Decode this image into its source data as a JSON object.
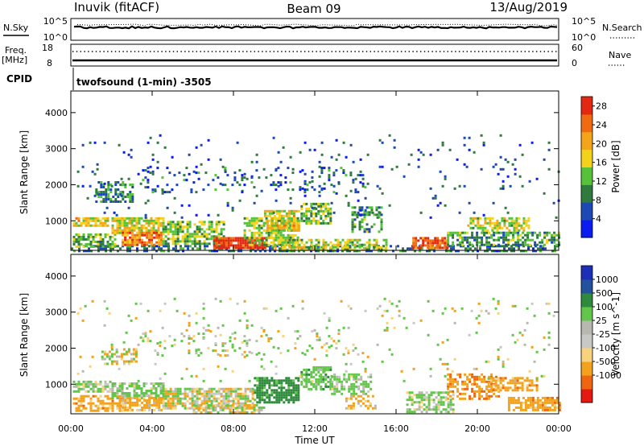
{
  "header": {
    "station": "Inuvik (fitACF)",
    "beam": "Beam 09",
    "date": "13/Aug/2019"
  },
  "mini_panels": {
    "nsky_label": "N.Sky",
    "nsky_ticks": [
      "10^5",
      "10^0"
    ],
    "nsearch_label": "N.Search",
    "nsearch_ticks": [
      "10^5",
      "10^0"
    ],
    "freq_label": "Freq.",
    "freq_unit": "[MHz]",
    "freq_ticks": [
      "18",
      "8"
    ],
    "nave_label": "Nave",
    "nave_ticks": [
      "60",
      "0"
    ],
    "cpid_label": "CPID",
    "cpid_value": "twofsound (1-min) -3505"
  },
  "colors": {
    "power_scale": [
      "#0b1cf0",
      "#1e48b4",
      "#2f7a3c",
      "#56c23a",
      "#f2d21a",
      "#f2a41b",
      "#ef6a10",
      "#e32812"
    ],
    "velocity_scale": [
      "#e41a10",
      "#ef6510",
      "#f2a21c",
      "#f8d27c",
      "#c8c8c4",
      "#b8b8b0",
      "#62c64a",
      "#2f8a3c",
      "#23519e",
      "#1c2fb6"
    ]
  },
  "chart_data": [
    {
      "type": "heatmap",
      "name": "power",
      "x_ticks": [
        "00:00",
        "04:00",
        "08:00",
        "12:00",
        "16:00",
        "20:00",
        "00:00"
      ],
      "xlim_hours": [
        0,
        24
      ],
      "ylabel": "Slant Range [km]",
      "ylim": [
        180,
        4600
      ],
      "y_ticks": [
        1000,
        2000,
        3000,
        4000
      ],
      "colorbar": {
        "label": "Power [dB]",
        "ticks": [
          "4",
          "8",
          "12",
          "16",
          "20",
          "24",
          "28"
        ],
        "range": [
          0,
          30
        ]
      },
      "regions": [
        {
          "x": [
            0.0,
            24.0
          ],
          "y": [
            190,
            330
          ],
          "value": 8,
          "density": 0.5
        },
        {
          "x": [
            0.1,
            1.8
          ],
          "y": [
            850,
            1100
          ],
          "value": 18,
          "density": 0.8
        },
        {
          "x": [
            0.1,
            2.2
          ],
          "y": [
            300,
            650
          ],
          "value": 12,
          "density": 0.6
        },
        {
          "x": [
            1.2,
            3.0
          ],
          "y": [
            1500,
            2100
          ],
          "value": 9,
          "density": 0.6
        },
        {
          "x": [
            2.0,
            4.5
          ],
          "y": [
            650,
            1100
          ],
          "value": 17,
          "density": 0.8
        },
        {
          "x": [
            2.5,
            4.5
          ],
          "y": [
            330,
            700
          ],
          "value": 23,
          "density": 0.8
        },
        {
          "x": [
            4.5,
            7.5
          ],
          "y": [
            380,
            1000
          ],
          "value": 13,
          "density": 0.7
        },
        {
          "x": [
            7.0,
            9.5
          ],
          "y": [
            230,
            550
          ],
          "value": 27,
          "density": 0.9
        },
        {
          "x": [
            8.5,
            11.2
          ],
          "y": [
            350,
            1100
          ],
          "value": 14,
          "density": 0.7
        },
        {
          "x": [
            9.5,
            11.2
          ],
          "y": [
            700,
            1300
          ],
          "value": 18,
          "density": 0.7
        },
        {
          "x": [
            11.3,
            12.8
          ],
          "y": [
            900,
            1500
          ],
          "value": 13,
          "density": 0.7
        },
        {
          "x": [
            10.0,
            15.5
          ],
          "y": [
            190,
            500
          ],
          "value": 15,
          "density": 0.55
        },
        {
          "x": [
            13.8,
            15.3
          ],
          "y": [
            700,
            1400
          ],
          "value": 11,
          "density": 0.5
        },
        {
          "x": [
            16.8,
            18.5
          ],
          "y": [
            230,
            550
          ],
          "value": 26,
          "density": 0.85
        },
        {
          "x": [
            18.5,
            24.0
          ],
          "y": [
            300,
            700
          ],
          "value": 11,
          "density": 0.6
        },
        {
          "x": [
            19.5,
            22.5
          ],
          "y": [
            700,
            1100
          ],
          "value": 16,
          "density": 0.6
        },
        {
          "x": [
            0.3,
            24.0
          ],
          "y": [
            1100,
            3400
          ],
          "value": 6,
          "density": 0.03
        },
        {
          "x": [
            3.5,
            14.5
          ],
          "y": [
            1800,
            2500
          ],
          "value": 7,
          "density": 0.12
        }
      ]
    },
    {
      "type": "heatmap",
      "name": "velocity",
      "x_ticks": [
        "00:00",
        "04:00",
        "08:00",
        "12:00",
        "16:00",
        "20:00",
        "00:00"
      ],
      "xlim_hours": [
        0,
        24
      ],
      "xlabel": "Time UT",
      "ylabel": "Slant Range [km]",
      "ylim": [
        180,
        4600
      ],
      "y_ticks": [
        1000,
        2000,
        3000,
        4000
      ],
      "colorbar": {
        "label": "Velocity [m s^-1]",
        "ticks": [
          "1000",
          "500",
          "100",
          "25",
          "-25",
          "-100",
          "-500",
          "-1000"
        ],
        "levels": [
          -1000,
          -500,
          -100,
          -25,
          25,
          100,
          500,
          1000
        ]
      },
      "regions": [
        {
          "x": [
            0.1,
            2.0
          ],
          "y": [
            800,
            1100
          ],
          "value": 150,
          "density": 0.8
        },
        {
          "x": [
            0.1,
            2.5
          ],
          "y": [
            250,
            700
          ],
          "value": -300,
          "density": 0.6
        },
        {
          "x": [
            1.5,
            3.2
          ],
          "y": [
            1550,
            2000
          ],
          "value": 0,
          "density": 0.45
        },
        {
          "x": [
            2.0,
            4.5
          ],
          "y": [
            600,
            1050
          ],
          "value": 200,
          "density": 0.75
        },
        {
          "x": [
            2.5,
            4.5
          ],
          "y": [
            300,
            650
          ],
          "value": -200,
          "density": 0.7
        },
        {
          "x": [
            4.5,
            9.0
          ],
          "y": [
            300,
            900
          ],
          "value": 5,
          "density": 0.75
        },
        {
          "x": [
            6.0,
            9.5
          ],
          "y": [
            190,
            450
          ],
          "value": 0,
          "density": 0.6
        },
        {
          "x": [
            9.0,
            11.2
          ],
          "y": [
            500,
            1200
          ],
          "value": 700,
          "density": 0.75
        },
        {
          "x": [
            11.3,
            12.8
          ],
          "y": [
            850,
            1500
          ],
          "value": 300,
          "density": 0.7
        },
        {
          "x": [
            12.8,
            14.8
          ],
          "y": [
            700,
            1300
          ],
          "value": 200,
          "density": 0.5
        },
        {
          "x": [
            13.5,
            15.0
          ],
          "y": [
            300,
            700
          ],
          "value": -150,
          "density": 0.45
        },
        {
          "x": [
            16.5,
            18.8
          ],
          "y": [
            250,
            800
          ],
          "value": 150,
          "density": 0.6
        },
        {
          "x": [
            18.5,
            21.0
          ],
          "y": [
            600,
            1300
          ],
          "value": -400,
          "density": 0.5
        },
        {
          "x": [
            20.5,
            23.0
          ],
          "y": [
            800,
            1200
          ],
          "value": -300,
          "density": 0.6
        },
        {
          "x": [
            21.5,
            24.0
          ],
          "y": [
            250,
            650
          ],
          "value": -300,
          "density": 0.7
        },
        {
          "x": [
            0.3,
            24.0
          ],
          "y": [
            1100,
            3400
          ],
          "value": 60,
          "density": 0.03
        },
        {
          "x": [
            3.5,
            14.5
          ],
          "y": [
            1800,
            2500
          ],
          "value": 40,
          "density": 0.1
        }
      ]
    }
  ]
}
